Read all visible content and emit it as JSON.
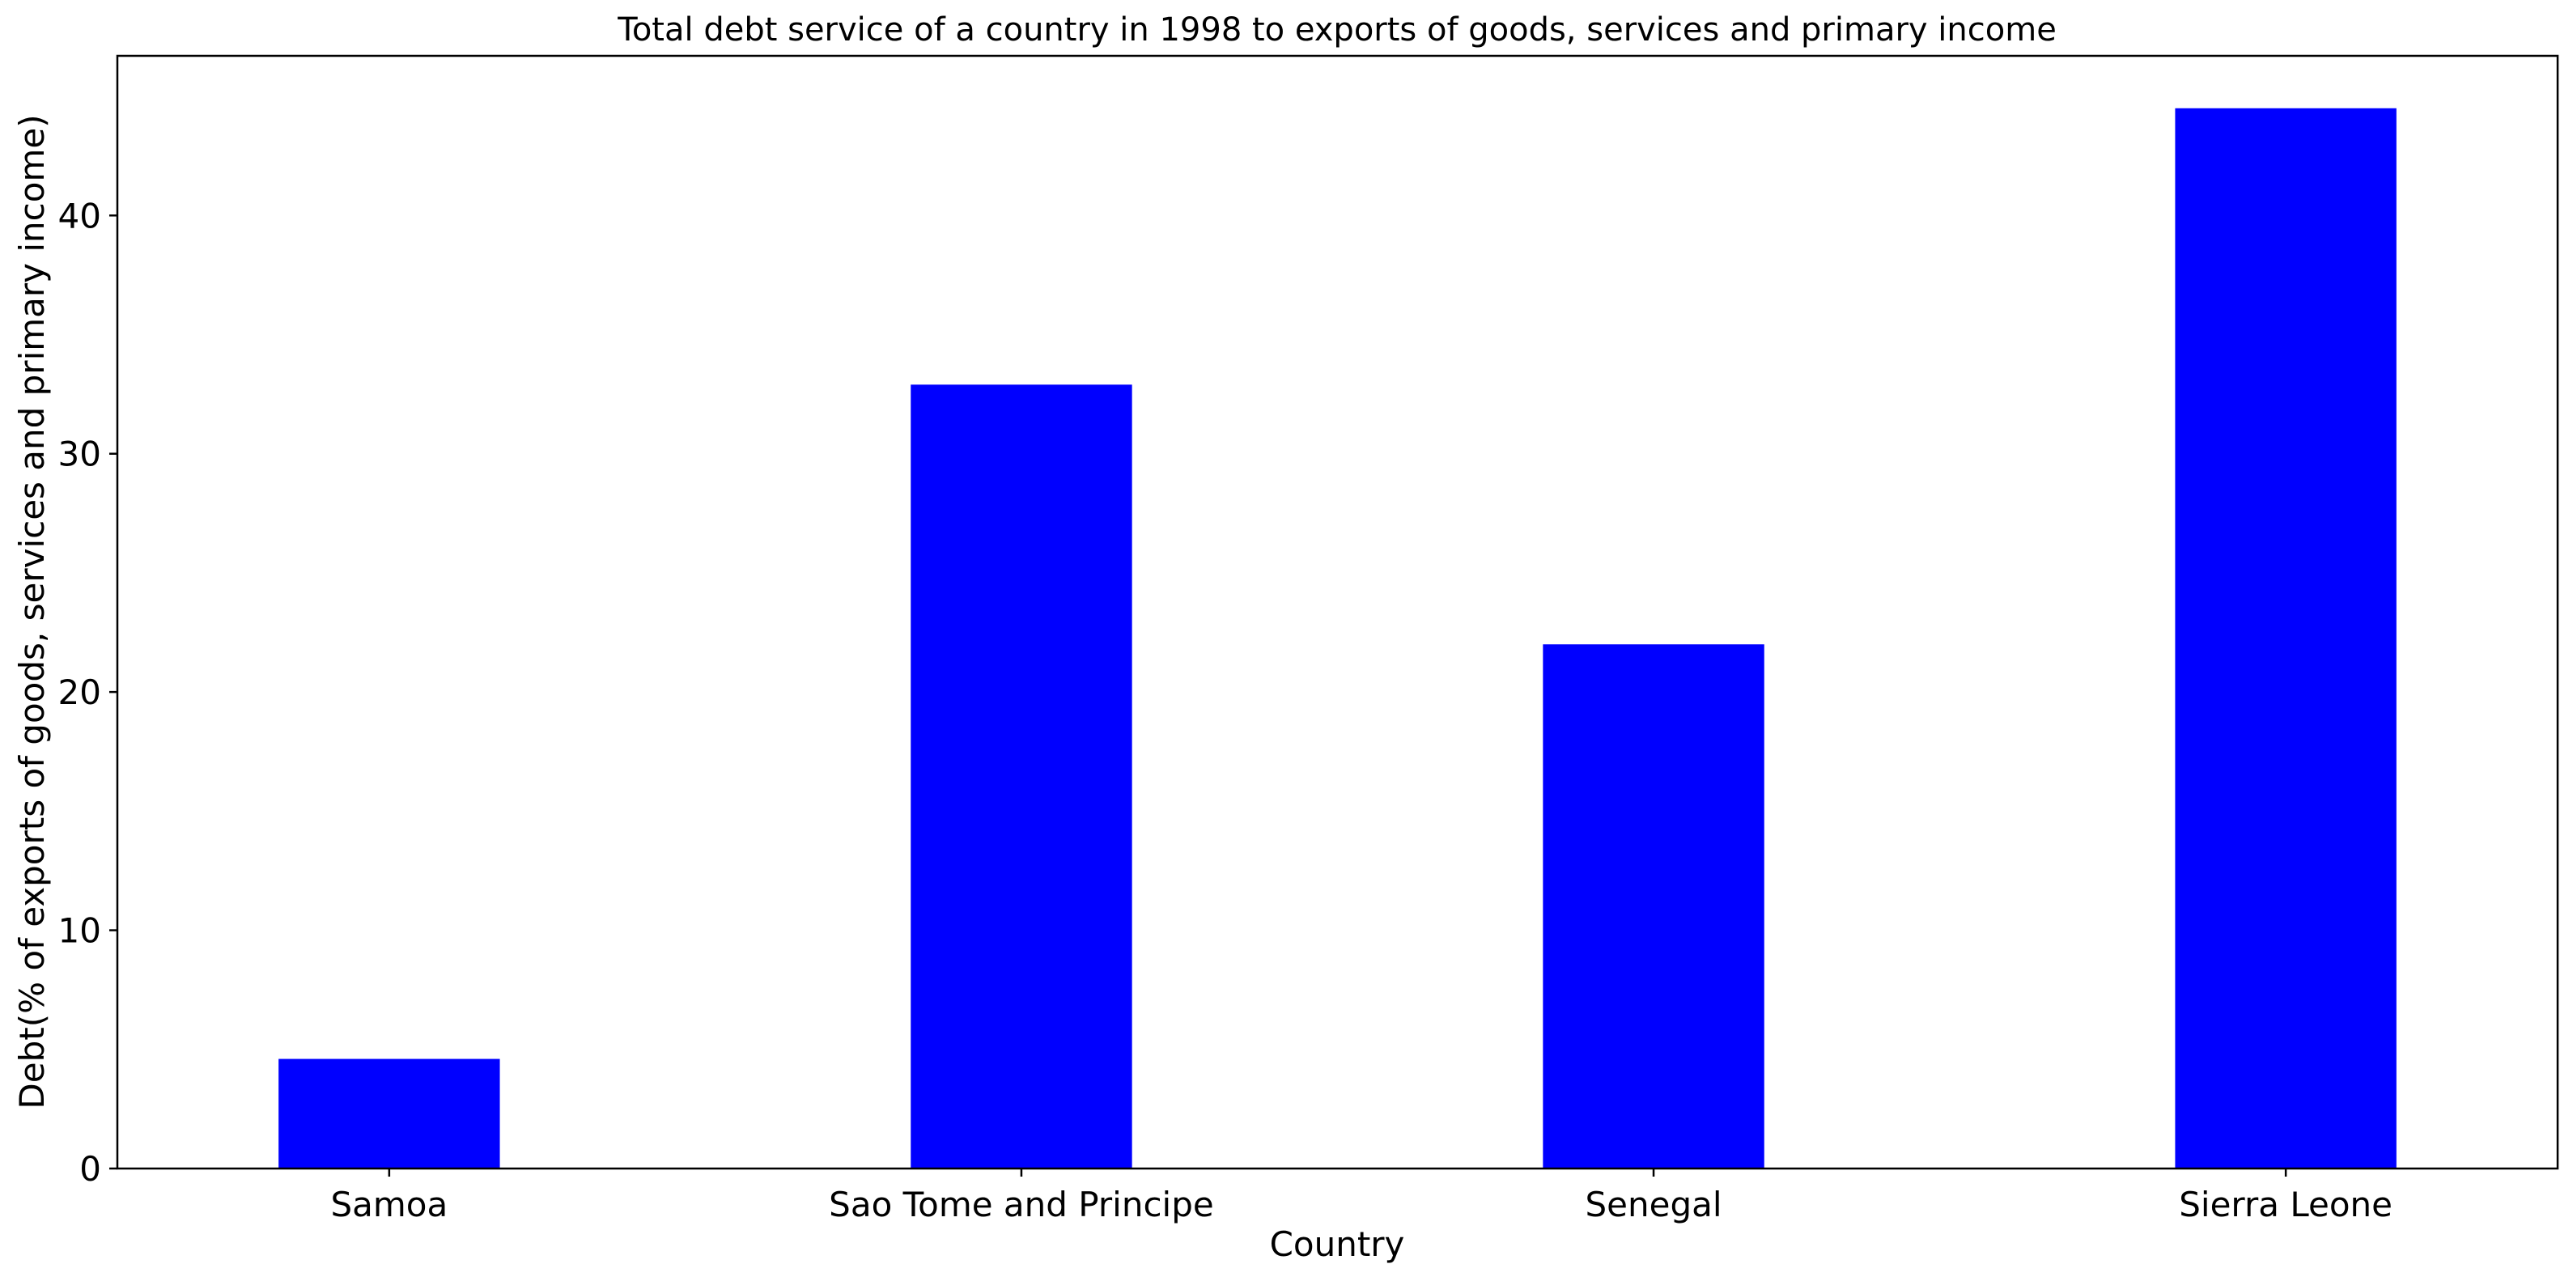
{
  "chart_data": {
    "type": "bar",
    "title": "Total debt service of a country in 1998 to exports of goods, services and primary income",
    "xlabel": "Country",
    "ylabel": "Debt(% of exports of goods, services and primary income)",
    "categories": [
      "Samoa",
      "Sao Tome and Principe",
      "Senegal",
      "Sierra Leone"
    ],
    "values": [
      4.6,
      32.9,
      22.0,
      44.5
    ],
    "ylim": [
      0,
      46.7
    ],
    "yticks": [
      0,
      10,
      20,
      30,
      40
    ],
    "ytick_labels": [
      "0",
      "10",
      "20",
      "30",
      "40"
    ],
    "grid": false,
    "legend": "none",
    "bar_color": "#0000ff"
  }
}
